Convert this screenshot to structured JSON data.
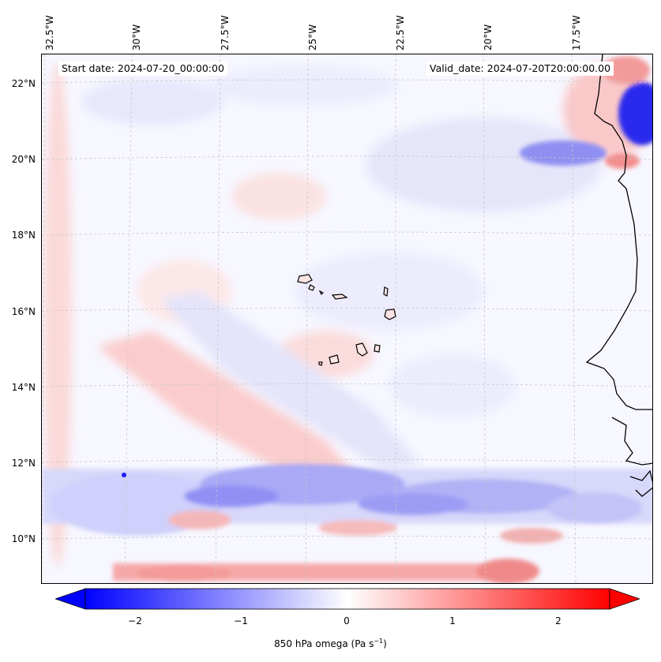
{
  "map": {
    "start_date": "Start date: 2024-07-20_00:00:00",
    "valid_date": "Valid_date: 2024-07-20T20:00:00.00",
    "longitude_labels": [
      "32.5°W",
      "30°W",
      "27.5°W",
      "25°W",
      "22.5°W",
      "20°W",
      "17.5°W"
    ],
    "latitude_labels": [
      "22°N",
      "20°N",
      "18°N",
      "16°N",
      "14°N",
      "12°N",
      "10°N"
    ],
    "colors": {
      "positive": "#ff0000",
      "negative": "#0000ff",
      "neutral": "#ffffff",
      "coastline": "#000000",
      "grid": "#bbbbbb"
    }
  },
  "colorbar": {
    "ticks": [
      "−2",
      "−1",
      "0",
      "1",
      "2"
    ],
    "label": "850 hPa omega (Pa s",
    "label_superscript": "−1",
    "label_close": ")",
    "range": [
      -2.6,
      2.6
    ]
  }
}
